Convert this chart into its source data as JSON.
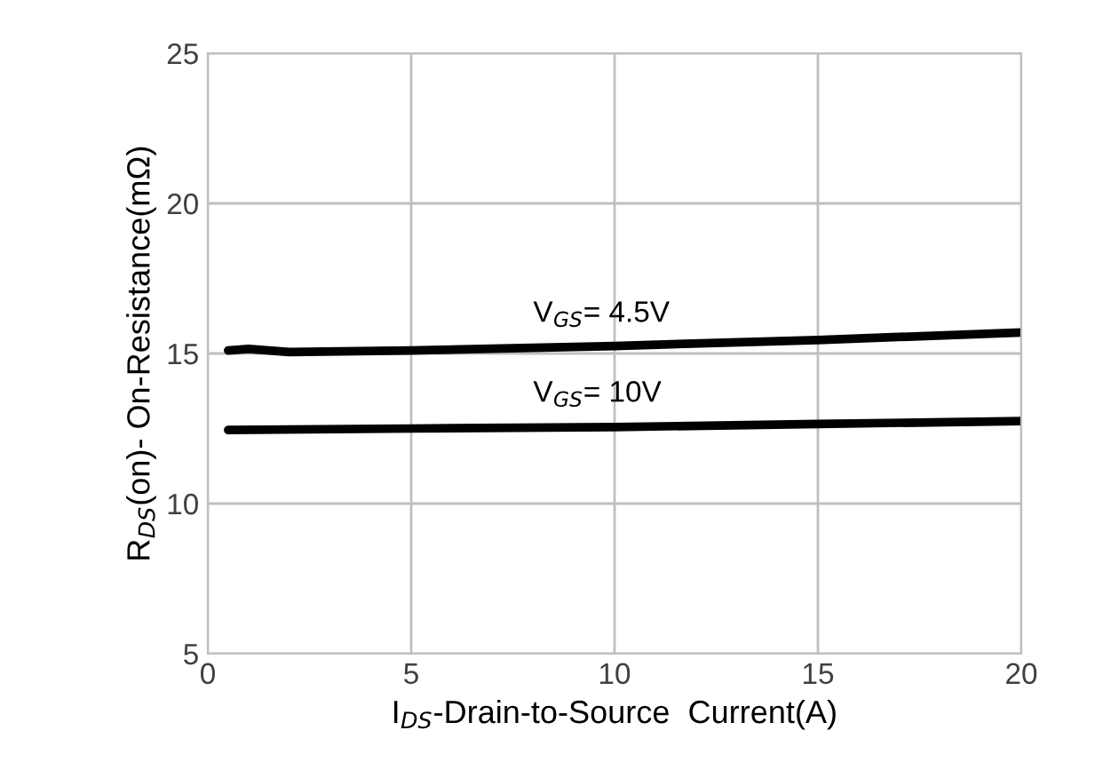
{
  "chart_data": {
    "type": "line",
    "xlabel": "I$_{DS}$-Drain-to-Source  Current(A)",
    "ylabel": "R$_{DS}$(on)- On-Resistance(mΩ)",
    "xlim": [
      0,
      20
    ],
    "xticks": [
      0,
      5,
      10,
      15,
      20
    ],
    "ylim": [
      5,
      25
    ],
    "yticks": [
      5,
      10,
      15,
      20,
      25
    ],
    "grid": true,
    "line_style": "solid",
    "series": [
      {
        "name": "V$_{GS}$= 4.5V",
        "color": "#000000",
        "x": [
          0.5,
          1,
          2,
          5,
          10,
          15,
          20
        ],
        "values": [
          15.1,
          15.15,
          15.05,
          15.1,
          15.25,
          15.45,
          15.7
        ]
      },
      {
        "name": "V$_{GS}$= 10V",
        "color": "#000000",
        "x": [
          0.5,
          5,
          10,
          15,
          20
        ],
        "values": [
          12.45,
          12.5,
          12.55,
          12.65,
          12.75
        ]
      }
    ]
  }
}
